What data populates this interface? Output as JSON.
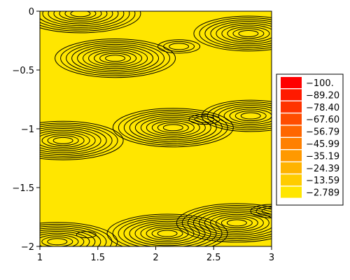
{
  "chart_data": {
    "type": "heatmap",
    "title": "",
    "xlabel": "",
    "ylabel": "",
    "xlim": [
      1,
      3
    ],
    "ylim": [
      -2,
      0
    ],
    "x_ticks": [
      {
        "value": 1,
        "label": "1"
      },
      {
        "value": 1.5,
        "label": "1.5"
      },
      {
        "value": 2,
        "label": "2"
      },
      {
        "value": 2.5,
        "label": "2.5"
      },
      {
        "value": 3,
        "label": "3"
      }
    ],
    "y_ticks": [
      {
        "value": 0,
        "label": "0"
      },
      {
        "value": -0.5,
        "label": "−0.5"
      },
      {
        "value": -1,
        "label": "−1"
      },
      {
        "value": -1.5,
        "label": "−1.5"
      },
      {
        "value": -2,
        "label": "−2"
      }
    ],
    "legend_position": "right",
    "legend": [
      {
        "label": "−100.",
        "color": "#ff0000"
      },
      {
        "label": "−89.20",
        "color": "#ff1a00"
      },
      {
        "label": "−78.40",
        "color": "#ff3300"
      },
      {
        "label": "−67.60",
        "color": "#ff4d00"
      },
      {
        "label": "−56.79",
        "color": "#ff6600"
      },
      {
        "label": "−45.99",
        "color": "#ff8000"
      },
      {
        "label": "−35.19",
        "color": "#ff9900"
      },
      {
        "label": "−24.39",
        "color": "#ffb300"
      },
      {
        "label": "−13.59",
        "color": "#ffcc00"
      },
      {
        "label": "−2.789",
        "color": "#ffe600"
      }
    ],
    "background_color": "#ffe600",
    "peaks": [
      {
        "x": 1.35,
        "y": -0.02,
        "level": 10
      },
      {
        "x": 2.8,
        "y": -0.19,
        "level": 9
      },
      {
        "x": 1.65,
        "y": -0.4,
        "level": 10
      },
      {
        "x": 2.2,
        "y": -0.3,
        "level": 3
      },
      {
        "x": 1.2,
        "y": -1.1,
        "level": 10
      },
      {
        "x": 2.15,
        "y": -0.99,
        "level": 10
      },
      {
        "x": 2.82,
        "y": -0.89,
        "level": 8
      },
      {
        "x": 2.42,
        "y": -0.92,
        "level": 2
      },
      {
        "x": 1.15,
        "y": -1.96,
        "level": 10
      },
      {
        "x": 1.4,
        "y": -1.9,
        "level": 1
      },
      {
        "x": 2.1,
        "y": -1.89,
        "level": 10
      },
      {
        "x": 2.7,
        "y": -1.8,
        "level": 10
      },
      {
        "x": 3.0,
        "y": -1.7,
        "level": 3
      }
    ]
  }
}
